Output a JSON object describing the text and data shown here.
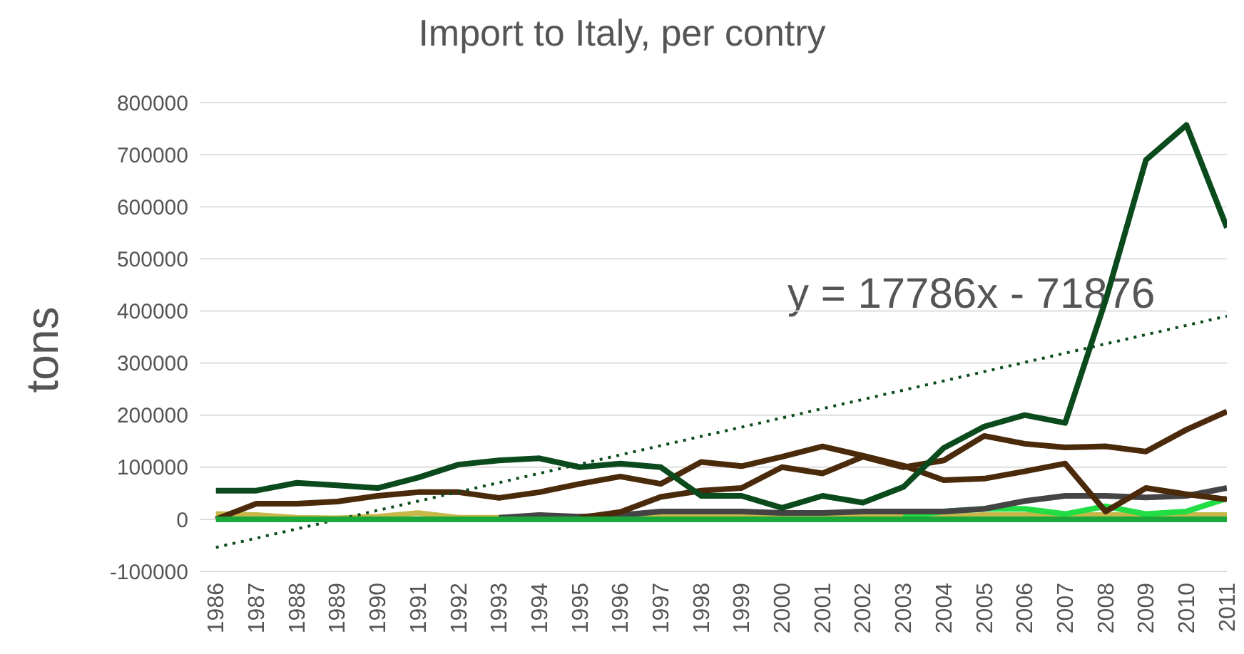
{
  "chart_data": {
    "type": "line",
    "title": "Import to Italy, per contry",
    "ylabel": "tons",
    "categories": [
      "1986",
      "1987",
      "1988",
      "1989",
      "1990",
      "1991",
      "1992",
      "1993",
      "1994",
      "1995",
      "1996",
      "1997",
      "1998",
      "1999",
      "2000",
      "2001",
      "2002",
      "2003",
      "2004",
      "2005",
      "2006",
      "2007",
      "2008",
      "2009",
      "2010",
      "2011"
    ],
    "series": [
      {
        "color": "#c8b84a",
        "values": [
          10000,
          8000,
          3000,
          2000,
          5000,
          12000,
          3000,
          3000,
          5000,
          5000,
          5000,
          5000,
          5000,
          5000,
          5000,
          5000,
          5000,
          5000,
          5000,
          8000,
          8000,
          8000,
          8000,
          8000,
          8000,
          8000
        ]
      },
      {
        "color": "#22dd44",
        "values": [
          null,
          null,
          null,
          null,
          null,
          null,
          null,
          null,
          null,
          null,
          null,
          null,
          null,
          null,
          null,
          null,
          null,
          5000,
          15000,
          20000,
          20000,
          10000,
          25000,
          10000,
          15000,
          40000
        ]
      },
      {
        "color": "#444444",
        "values": [
          null,
          null,
          null,
          null,
          null,
          null,
          null,
          3000,
          8000,
          5000,
          8000,
          15000,
          15000,
          15000,
          12000,
          12000,
          15000,
          15000,
          15000,
          20000,
          35000,
          45000,
          45000,
          42000,
          45000,
          60000
        ]
      },
      {
        "color": "#4a2a0a",
        "values": [
          0,
          30000,
          30000,
          34000,
          45000,
          52000,
          52000,
          41000,
          52000,
          68000,
          82000,
          68000,
          110000,
          102000,
          120000,
          140000,
          122000,
          103000,
          75000,
          78000,
          92000,
          107000,
          15000,
          60000,
          48000,
          38000
        ]
      },
      {
        "color": "#4a2a0a",
        "values": [
          null,
          null,
          null,
          null,
          null,
          null,
          null,
          null,
          null,
          3000,
          14000,
          43000,
          55000,
          60000,
          100000,
          88000,
          120000,
          100000,
          113000,
          160000,
          145000,
          138000,
          140000,
          130000,
          172000,
          207000
        ]
      },
      {
        "color": "#0a4a1c",
        "values": [
          55000,
          55000,
          70000,
          65000,
          60000,
          80000,
          105000,
          113000,
          117000,
          100000,
          107000,
          100000,
          45000,
          45000,
          22000,
          45000,
          32000,
          62000,
          137000,
          178000,
          200000,
          185000,
          420000,
          690000,
          757000,
          560000
        ]
      },
      {
        "type": "line",
        "color": "#0a4a1c",
        "line_style": "dotted",
        "values": [
          -54000,
          null,
          null,
          null,
          null,
          null,
          null,
          null,
          null,
          null,
          null,
          null,
          null,
          null,
          null,
          null,
          null,
          null,
          null,
          null,
          null,
          null,
          null,
          null,
          null,
          390000
        ]
      },
      {
        "color": "#1aa83a",
        "values": [
          0,
          0,
          0,
          0,
          0,
          0,
          0,
          0,
          0,
          0,
          0,
          0,
          0,
          0,
          0,
          0,
          0,
          0,
          0,
          0,
          0,
          0,
          0,
          0,
          0,
          0
        ]
      }
    ],
    "ylim": [
      -100000,
      800000
    ],
    "yticks": [
      -100000,
      0,
      100000,
      200000,
      300000,
      400000,
      500000,
      600000,
      700000,
      800000
    ],
    "grid": "y",
    "marker": "none",
    "annotations": [
      "y = 17786x - 71876"
    ]
  }
}
